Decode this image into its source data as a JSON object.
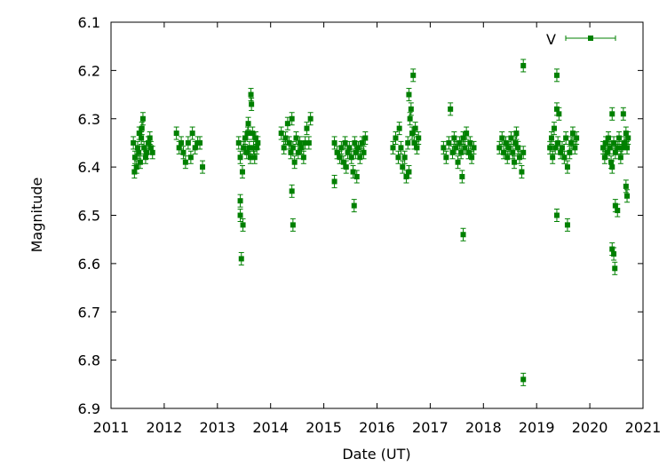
{
  "chart_data": {
    "type": "scatter",
    "xlabel": "Date (UT)",
    "ylabel": "Magnitude",
    "xlim": [
      2011,
      2021
    ],
    "ylim": [
      6.1,
      6.9
    ],
    "y_inverted": true,
    "grid": false,
    "legend_position": "top-right",
    "x_ticks": [
      "2011",
      "2012",
      "2013",
      "2014",
      "2015",
      "2016",
      "2017",
      "2018",
      "2019",
      "2020",
      "2021"
    ],
    "y_ticks": [
      "6.1",
      "6.2",
      "6.3",
      "6.4",
      "6.5",
      "6.6",
      "6.7",
      "6.8",
      "6.9"
    ],
    "series": [
      {
        "name": "V",
        "color": "#008000",
        "marker": "square",
        "error_bars": true,
        "points": [
          [
            2011.42,
            6.35
          ],
          [
            2011.45,
            6.38
          ],
          [
            2011.48,
            6.4
          ],
          [
            2011.5,
            6.36
          ],
          [
            2011.52,
            6.37
          ],
          [
            2011.55,
            6.39
          ],
          [
            2011.57,
            6.34
          ],
          [
            2011.58,
            6.32
          ],
          [
            2011.6,
            6.3
          ],
          [
            2011.62,
            6.36
          ],
          [
            2011.65,
            6.38
          ],
          [
            2011.67,
            6.37
          ],
          [
            2011.7,
            6.35
          ],
          [
            2011.73,
            6.34
          ],
          [
            2011.75,
            6.36
          ],
          [
            2011.78,
            6.37
          ],
          [
            2011.44,
            6.41
          ],
          [
            2011.53,
            6.33
          ],
          [
            2012.23,
            6.33
          ],
          [
            2012.28,
            6.36
          ],
          [
            2012.32,
            6.35
          ],
          [
            2012.36,
            6.37
          ],
          [
            2012.4,
            6.39
          ],
          [
            2012.45,
            6.35
          ],
          [
            2012.5,
            6.38
          ],
          [
            2012.53,
            6.33
          ],
          [
            2012.58,
            6.36
          ],
          [
            2012.63,
            6.35
          ],
          [
            2012.67,
            6.35
          ],
          [
            2012.72,
            6.4
          ],
          [
            2013.4,
            6.35
          ],
          [
            2013.43,
            6.38
          ],
          [
            2013.47,
            6.41
          ],
          [
            2013.49,
            6.36
          ],
          [
            2013.52,
            6.34
          ],
          [
            2013.55,
            6.37
          ],
          [
            2013.57,
            6.33
          ],
          [
            2013.58,
            6.31
          ],
          [
            2013.6,
            6.36
          ],
          [
            2013.62,
            6.38
          ],
          [
            2013.63,
            6.25
          ],
          [
            2013.64,
            6.27
          ],
          [
            2013.66,
            6.33
          ],
          [
            2013.68,
            6.36
          ],
          [
            2013.7,
            6.38
          ],
          [
            2013.72,
            6.34
          ],
          [
            2013.74,
            6.36
          ],
          [
            2013.76,
            6.35
          ],
          [
            2013.43,
            6.47
          ],
          [
            2013.43,
            6.5
          ],
          [
            2013.48,
            6.52
          ],
          [
            2013.45,
            6.59
          ],
          [
            2014.2,
            6.33
          ],
          [
            2014.25,
            6.36
          ],
          [
            2014.28,
            6.34
          ],
          [
            2014.32,
            6.31
          ],
          [
            2014.35,
            6.35
          ],
          [
            2014.38,
            6.37
          ],
          [
            2014.4,
            6.3
          ],
          [
            2014.42,
            6.36
          ],
          [
            2014.45,
            6.39
          ],
          [
            2014.48,
            6.34
          ],
          [
            2014.52,
            6.37
          ],
          [
            2014.55,
            6.35
          ],
          [
            2014.58,
            6.36
          ],
          [
            2014.62,
            6.38
          ],
          [
            2014.65,
            6.35
          ],
          [
            2014.68,
            6.32
          ],
          [
            2014.72,
            6.35
          ],
          [
            2014.75,
            6.3
          ],
          [
            2014.4,
            6.45
          ],
          [
            2014.42,
            6.52
          ],
          [
            2015.2,
            6.35
          ],
          [
            2015.25,
            6.37
          ],
          [
            2015.3,
            6.38
          ],
          [
            2015.33,
            6.36
          ],
          [
            2015.37,
            6.39
          ],
          [
            2015.4,
            6.35
          ],
          [
            2015.42,
            6.4
          ],
          [
            2015.45,
            6.37
          ],
          [
            2015.48,
            6.36
          ],
          [
            2015.52,
            6.38
          ],
          [
            2015.55,
            6.41
          ],
          [
            2015.58,
            6.35
          ],
          [
            2015.6,
            6.37
          ],
          [
            2015.62,
            6.42
          ],
          [
            2015.65,
            6.36
          ],
          [
            2015.68,
            6.38
          ],
          [
            2015.72,
            6.35
          ],
          [
            2015.75,
            6.37
          ],
          [
            2015.78,
            6.34
          ],
          [
            2015.2,
            6.43
          ],
          [
            2015.57,
            6.48
          ],
          [
            2016.3,
            6.36
          ],
          [
            2016.35,
            6.34
          ],
          [
            2016.4,
            6.38
          ],
          [
            2016.42,
            6.32
          ],
          [
            2016.45,
            6.36
          ],
          [
            2016.48,
            6.4
          ],
          [
            2016.52,
            6.38
          ],
          [
            2016.55,
            6.42
          ],
          [
            2016.58,
            6.35
          ],
          [
            2016.6,
            6.25
          ],
          [
            2016.62,
            6.3
          ],
          [
            2016.64,
            6.28
          ],
          [
            2016.66,
            6.33
          ],
          [
            2016.68,
            6.21
          ],
          [
            2016.7,
            6.35
          ],
          [
            2016.72,
            6.32
          ],
          [
            2016.75,
            6.36
          ],
          [
            2016.78,
            6.34
          ],
          [
            2016.6,
            6.41
          ],
          [
            2017.25,
            6.36
          ],
          [
            2017.3,
            6.38
          ],
          [
            2017.35,
            6.35
          ],
          [
            2017.38,
            6.28
          ],
          [
            2017.42,
            6.37
          ],
          [
            2017.45,
            6.34
          ],
          [
            2017.48,
            6.36
          ],
          [
            2017.52,
            6.39
          ],
          [
            2017.55,
            6.35
          ],
          [
            2017.58,
            6.37
          ],
          [
            2017.6,
            6.42
          ],
          [
            2017.62,
            6.34
          ],
          [
            2017.65,
            6.36
          ],
          [
            2017.68,
            6.33
          ],
          [
            2017.72,
            6.37
          ],
          [
            2017.75,
            6.35
          ],
          [
            2017.78,
            6.38
          ],
          [
            2017.82,
            6.36
          ],
          [
            2017.62,
            6.54
          ],
          [
            2018.3,
            6.36
          ],
          [
            2018.35,
            6.34
          ],
          [
            2018.38,
            6.37
          ],
          [
            2018.42,
            6.35
          ],
          [
            2018.45,
            6.38
          ],
          [
            2018.48,
            6.36
          ],
          [
            2018.52,
            6.34
          ],
          [
            2018.55,
            6.37
          ],
          [
            2018.58,
            6.39
          ],
          [
            2018.6,
            6.35
          ],
          [
            2018.62,
            6.33
          ],
          [
            2018.65,
            6.36
          ],
          [
            2018.68,
            6.38
          ],
          [
            2018.72,
            6.41
          ],
          [
            2018.75,
            6.37
          ],
          [
            2018.75,
            6.19
          ],
          [
            2018.75,
            6.84
          ],
          [
            2019.25,
            6.36
          ],
          [
            2019.28,
            6.34
          ],
          [
            2019.3,
            6.38
          ],
          [
            2019.33,
            6.32
          ],
          [
            2019.35,
            6.36
          ],
          [
            2019.38,
            6.28
          ],
          [
            2019.4,
            6.35
          ],
          [
            2019.42,
            6.29
          ],
          [
            2019.45,
            6.37
          ],
          [
            2019.48,
            6.36
          ],
          [
            2019.52,
            6.38
          ],
          [
            2019.55,
            6.34
          ],
          [
            2019.58,
            6.4
          ],
          [
            2019.62,
            6.37
          ],
          [
            2019.65,
            6.35
          ],
          [
            2019.68,
            6.33
          ],
          [
            2019.72,
            6.36
          ],
          [
            2019.75,
            6.34
          ],
          [
            2019.38,
            6.21
          ],
          [
            2019.38,
            6.5
          ],
          [
            2019.58,
            6.52
          ],
          [
            2020.25,
            6.36
          ],
          [
            2020.28,
            6.38
          ],
          [
            2020.3,
            6.35
          ],
          [
            2020.33,
            6.37
          ],
          [
            2020.35,
            6.34
          ],
          [
            2020.38,
            6.36
          ],
          [
            2020.4,
            6.39
          ],
          [
            2020.42,
            6.29
          ],
          [
            2020.45,
            6.35
          ],
          [
            2020.48,
            6.37
          ],
          [
            2020.52,
            6.36
          ],
          [
            2020.55,
            6.34
          ],
          [
            2020.58,
            6.38
          ],
          [
            2020.6,
            6.36
          ],
          [
            2020.63,
            6.29
          ],
          [
            2020.65,
            6.35
          ],
          [
            2020.68,
            6.33
          ],
          [
            2020.7,
            6.36
          ],
          [
            2020.72,
            6.34
          ],
          [
            2020.42,
            6.4
          ],
          [
            2020.42,
            6.57
          ],
          [
            2020.45,
            6.58
          ],
          [
            2020.47,
            6.61
          ],
          [
            2020.48,
            6.48
          ],
          [
            2020.52,
            6.49
          ],
          [
            2020.68,
            6.44
          ],
          [
            2020.7,
            6.46
          ]
        ]
      }
    ]
  }
}
